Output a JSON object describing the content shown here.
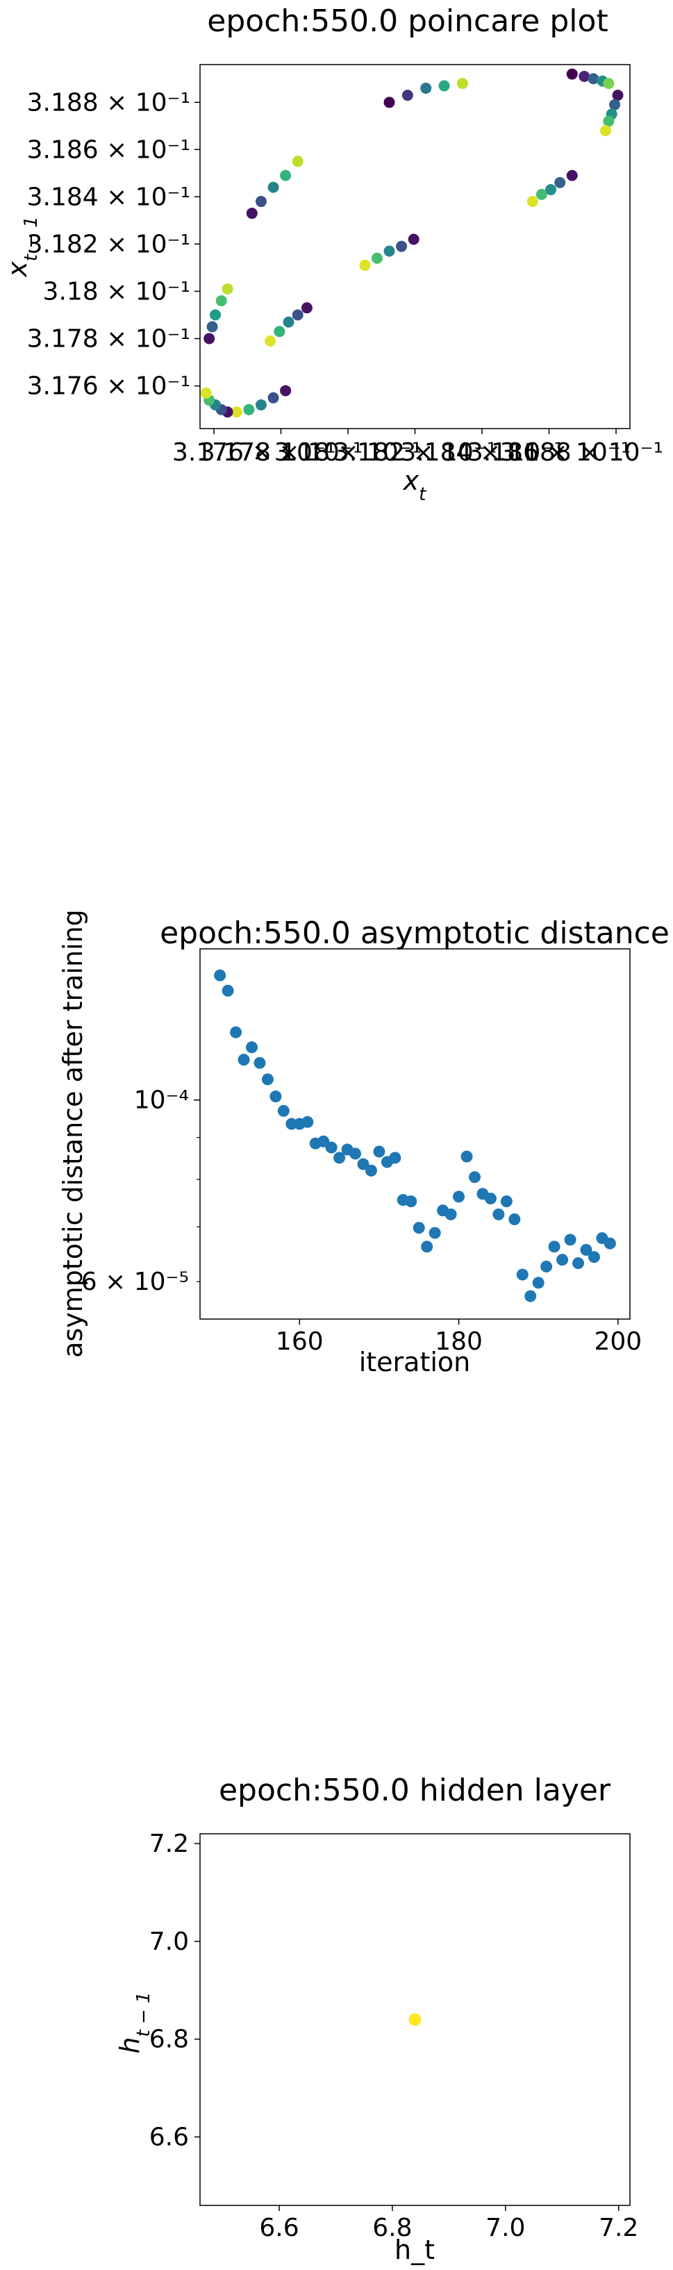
{
  "chart_data": [
    {
      "type": "scatter",
      "title": "epoch:550.0 poincare plot",
      "xlabel": "x_t",
      "ylabel": "x_{t-1}",
      "scale": "log",
      "xlim": [
        0.31752,
        0.31893
      ],
      "ylim": [
        0.31742,
        0.31896
      ],
      "x_tick_labels": [
        "3.176 × 10⁻¹",
        "3.178 × 10⁻¹",
        "3.18 × 10⁻¹",
        "3.182 × 10⁻¹",
        "3.184 × 10⁻¹",
        "3.186 × 10⁻¹",
        "3.188 × 10⁻¹"
      ],
      "y_ticks": [
        0.3176,
        0.3178,
        0.318,
        0.3182,
        0.3184,
        0.3186,
        0.3188
      ],
      "y_tick_labels": [
        "3.176 × 10⁻¹",
        "3.178 × 10⁻¹",
        "3.18 × 10⁻¹",
        "3.182 × 10⁻¹",
        "3.184 × 10⁻¹",
        "3.186 × 10⁻¹",
        "3.188 × 10⁻¹"
      ],
      "colormap": "viridis",
      "points": [
        {
          "x": 0.31814,
          "y": 0.3188,
          "c": 0.0
        },
        {
          "x": 0.3182,
          "y": 0.31883,
          "c": 0.15
        },
        {
          "x": 0.31826,
          "y": 0.31886,
          "c": 0.4
        },
        {
          "x": 0.31832,
          "y": 0.31887,
          "c": 0.6
        },
        {
          "x": 0.31838,
          "y": 0.31888,
          "c": 0.9
        },
        {
          "x": 0.31874,
          "y": 0.31892,
          "c": 0.0
        },
        {
          "x": 0.31878,
          "y": 0.31891,
          "c": 0.1
        },
        {
          "x": 0.31881,
          "y": 0.3189,
          "c": 0.3
        },
        {
          "x": 0.31884,
          "y": 0.31889,
          "c": 0.5
        },
        {
          "x": 0.31886,
          "y": 0.31888,
          "c": 0.8
        },
        {
          "x": 0.31889,
          "y": 0.31883,
          "c": 0.05
        },
        {
          "x": 0.31888,
          "y": 0.31879,
          "c": 0.3
        },
        {
          "x": 0.31887,
          "y": 0.31875,
          "c": 0.5
        },
        {
          "x": 0.31886,
          "y": 0.31872,
          "c": 0.7
        },
        {
          "x": 0.31885,
          "y": 0.31868,
          "c": 0.95
        },
        {
          "x": 0.31874,
          "y": 0.31849,
          "c": 0.05
        },
        {
          "x": 0.3187,
          "y": 0.31846,
          "c": 0.3
        },
        {
          "x": 0.31867,
          "y": 0.31843,
          "c": 0.5
        },
        {
          "x": 0.31864,
          "y": 0.31841,
          "c": 0.7
        },
        {
          "x": 0.31861,
          "y": 0.31838,
          "c": 0.95
        },
        {
          "x": 0.31822,
          "y": 0.31822,
          "c": 0.05
        },
        {
          "x": 0.31818,
          "y": 0.31819,
          "c": 0.25
        },
        {
          "x": 0.31814,
          "y": 0.31817,
          "c": 0.45
        },
        {
          "x": 0.3181,
          "y": 0.31814,
          "c": 0.7
        },
        {
          "x": 0.31806,
          "y": 0.31811,
          "c": 0.95
        },
        {
          "x": 0.31787,
          "y": 0.31793,
          "c": 0.05
        },
        {
          "x": 0.31784,
          "y": 0.3179,
          "c": 0.25
        },
        {
          "x": 0.31781,
          "y": 0.31787,
          "c": 0.45
        },
        {
          "x": 0.31778,
          "y": 0.31783,
          "c": 0.65
        },
        {
          "x": 0.31775,
          "y": 0.31779,
          "c": 0.95
        },
        {
          "x": 0.3178,
          "y": 0.31758,
          "c": 0.05
        },
        {
          "x": 0.31776,
          "y": 0.31755,
          "c": 0.25
        },
        {
          "x": 0.31772,
          "y": 0.31752,
          "c": 0.45
        },
        {
          "x": 0.31768,
          "y": 0.3175,
          "c": 0.65
        },
        {
          "x": 0.31764,
          "y": 0.31749,
          "c": 0.95
        },
        {
          "x": 0.31761,
          "y": 0.31749,
          "c": 0.05
        },
        {
          "x": 0.31759,
          "y": 0.3175,
          "c": 0.25
        },
        {
          "x": 0.31757,
          "y": 0.31752,
          "c": 0.45
        },
        {
          "x": 0.31755,
          "y": 0.31754,
          "c": 0.7
        },
        {
          "x": 0.31754,
          "y": 0.31757,
          "c": 0.95
        },
        {
          "x": 0.31755,
          "y": 0.3178,
          "c": 0.05
        },
        {
          "x": 0.31756,
          "y": 0.31785,
          "c": 0.3
        },
        {
          "x": 0.31757,
          "y": 0.3179,
          "c": 0.55
        },
        {
          "x": 0.31759,
          "y": 0.31796,
          "c": 0.7
        },
        {
          "x": 0.31761,
          "y": 0.31801,
          "c": 0.9
        },
        {
          "x": 0.31769,
          "y": 0.31833,
          "c": 0.05
        },
        {
          "x": 0.31772,
          "y": 0.31838,
          "c": 0.25
        },
        {
          "x": 0.31776,
          "y": 0.31844,
          "c": 0.45
        },
        {
          "x": 0.3178,
          "y": 0.31849,
          "c": 0.65
        },
        {
          "x": 0.31784,
          "y": 0.31855,
          "c": 0.9
        }
      ]
    },
    {
      "type": "scatter",
      "title": "epoch:550.0 asymptotic distance",
      "xlabel": "iteration",
      "ylabel": "asymptotic distance after training",
      "scale": "log-y",
      "xlim": [
        147.5,
        201.5
      ],
      "ylim": [
        5.4e-05,
        0.000153
      ],
      "x_ticks": [
        160,
        180,
        200
      ],
      "x_tick_labels": [
        "160",
        "180",
        "200"
      ],
      "y_major_ticks": [
        0.0001
      ],
      "y_major_labels": [
        "10⁻⁴"
      ],
      "y_label_ticks": [
        6e-05
      ],
      "y_label_labels": [
        "6 × 10⁻⁵"
      ],
      "y_minor_ticks": [
        6e-05,
        7e-05,
        8e-05,
        9e-05
      ],
      "color": "#1f77b4",
      "x": [
        150,
        151,
        152,
        153,
        154,
        155,
        156,
        157,
        158,
        159,
        160,
        161,
        162,
        163,
        164,
        165,
        166,
        167,
        168,
        169,
        170,
        171,
        172,
        173,
        174,
        175,
        176,
        177,
        178,
        179,
        180,
        181,
        182,
        183,
        184,
        185,
        186,
        187,
        188,
        189,
        190,
        191,
        192,
        193,
        194,
        195,
        196,
        197,
        198,
        199
      ],
      "y": [
        0.000142,
        0.000136,
        0.000121,
        0.000112,
        0.000116,
        0.000111,
        0.000106,
        0.000101,
        9.7e-05,
        9.35e-05,
        9.35e-05,
        9.4e-05,
        8.85e-05,
        8.9e-05,
        8.75e-05,
        8.5e-05,
        8.7e-05,
        8.6e-05,
        8.35e-05,
        8.2e-05,
        8.65e-05,
        8.4e-05,
        8.5e-05,
        7.55e-05,
        7.52e-05,
        6.98e-05,
        6.62e-05,
        6.88e-05,
        7.33e-05,
        7.25e-05,
        7.62e-05,
        8.53e-05,
        8.05e-05,
        7.68e-05,
        7.58e-05,
        7.25e-05,
        7.52e-05,
        7.15e-05,
        6.12e-05,
        5.76e-05,
        5.98e-05,
        6.26e-05,
        6.62e-05,
        6.38e-05,
        6.75e-05,
        6.32e-05,
        6.56e-05,
        6.43e-05,
        6.78e-05,
        6.68e-05
      ]
    },
    {
      "type": "scatter",
      "title": "epoch:550.0 hidden layer",
      "xlabel": "h_t",
      "ylabel": "h_{t-1}",
      "xlim": [
        6.46,
        7.22
      ],
      "ylim": [
        6.46,
        7.22
      ],
      "x_ticks": [
        6.6,
        6.8,
        7.0,
        7.2
      ],
      "x_tick_labels": [
        "6.6",
        "6.8",
        "7.0",
        "7.2"
      ],
      "y_ticks": [
        6.6,
        6.8,
        7.0,
        7.2
      ],
      "y_tick_labels": [
        "6.6",
        "6.8",
        "7.0",
        "7.2"
      ],
      "color": "#fde725",
      "points": [
        {
          "x": 6.84,
          "y": 6.84
        }
      ]
    }
  ]
}
